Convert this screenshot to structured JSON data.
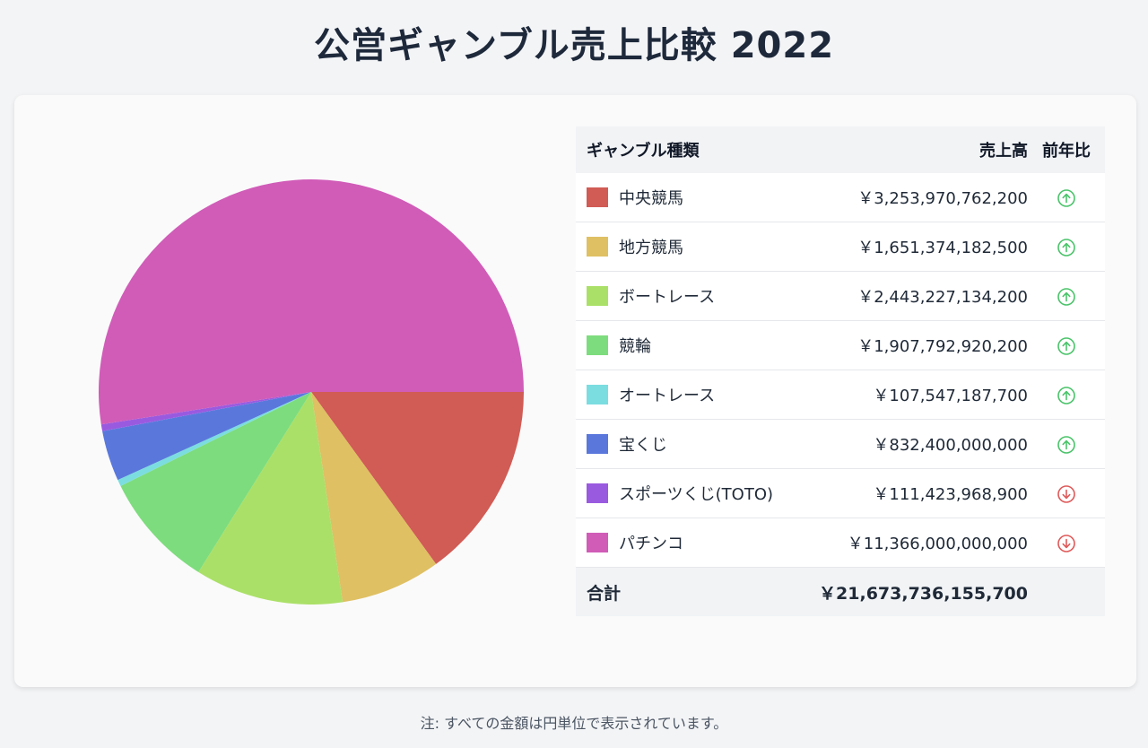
{
  "title": "公営ギャンブル売上比較 2022",
  "table": {
    "headers": {
      "type": "ギャンブル種類",
      "sales": "売上高",
      "yoy": "前年比"
    },
    "rows": [
      {
        "name": "中央競馬",
        "sales_label": "￥3,253,970,762,200",
        "trend": "up",
        "color": "#d15b55"
      },
      {
        "name": "地方競馬",
        "sales_label": "￥1,651,374,182,500",
        "trend": "up",
        "color": "#dfc063"
      },
      {
        "name": "ボートレース",
        "sales_label": "￥2,443,227,134,200",
        "trend": "up",
        "color": "#abe068"
      },
      {
        "name": "競輪",
        "sales_label": "￥1,907,792,920,200",
        "trend": "up",
        "color": "#7ddc7d"
      },
      {
        "name": "オートレース",
        "sales_label": "￥107,547,187,700",
        "trend": "up",
        "color": "#7bdde0"
      },
      {
        "name": "宝くじ",
        "sales_label": "￥832,400,000,000",
        "trend": "up",
        "color": "#5a78dc"
      },
      {
        "name": "スポーツくじ(TOTO)",
        "sales_label": "￥111,423,968,900",
        "trend": "down",
        "color": "#9a5ae0"
      },
      {
        "name": "パチンコ",
        "sales_label": "￥11,366,000,000,000",
        "trend": "down",
        "color": "#d05cb8"
      }
    ],
    "total": {
      "label": "合計",
      "value": "￥21,673,736,155,700"
    }
  },
  "chart_data": {
    "type": "pie",
    "categories": [
      "中央競馬",
      "地方競馬",
      "ボートレース",
      "競輪",
      "オートレース",
      "宝くじ",
      "スポーツくじ(TOTO)",
      "パチンコ"
    ],
    "values": [
      3253970762200,
      1651374182500,
      2443227134200,
      1907792920200,
      107547187700,
      832400000000,
      111423968900,
      11366000000000
    ],
    "colors": [
      "#d15b55",
      "#dfc063",
      "#abe068",
      "#7ddc7d",
      "#7bdde0",
      "#5a78dc",
      "#9a5ae0",
      "#d05cb8"
    ],
    "start_angle": "3 o'clock",
    "direction": "clockwise",
    "legend": "table-right"
  },
  "trend_colors": {
    "up": "#4ac46a",
    "down": "#e05a5a"
  },
  "footnote": "注: すべての金額は円単位で表示されています。"
}
